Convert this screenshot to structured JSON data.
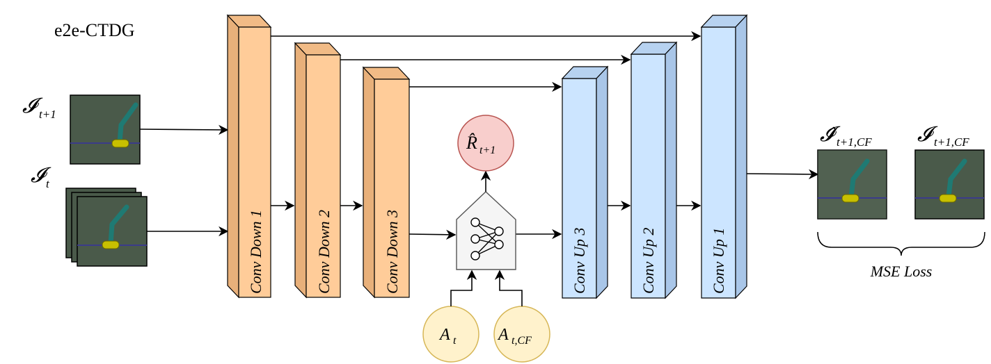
{
  "title": "e2e-CTDG",
  "inputs": {
    "next_frame_label": "𝓘",
    "next_frame_sub": "t+1",
    "current_frame_label": "𝓘",
    "current_frame_sub": "t"
  },
  "encoder": [
    {
      "label": "Conv Down 1"
    },
    {
      "label": "Conv Down 2"
    },
    {
      "label": "Conv Down 3"
    }
  ],
  "decoder": [
    {
      "label": "Conv Up 3"
    },
    {
      "label": "Conv Up 2"
    },
    {
      "label": "Conv Up 1"
    }
  ],
  "reward": {
    "label": "R̂",
    "sub": "t+1"
  },
  "actions": [
    {
      "label": "A",
      "sub": "t"
    },
    {
      "label": "A",
      "sub": "t,CF"
    }
  ],
  "outputs": {
    "pred_label": "𝓘̂",
    "pred_sub": "t+1,CF",
    "target_label": "𝓘",
    "target_sub": "t+1,CF",
    "loss_label": "MSE Loss"
  },
  "colors": {
    "encoder_front": "#ffcc99",
    "encoder_side": "#e8b07a",
    "decoder_front": "#cce5ff",
    "decoder_side": "#a9c6e8",
    "reward_fill": "#f8cecc",
    "reward_stroke": "#b85450",
    "action_fill": "#fff2cc",
    "action_stroke": "#d6b656",
    "frame_bg": "#4a5a4a",
    "arm": "#1f7a73",
    "base": "#c8c000"
  }
}
